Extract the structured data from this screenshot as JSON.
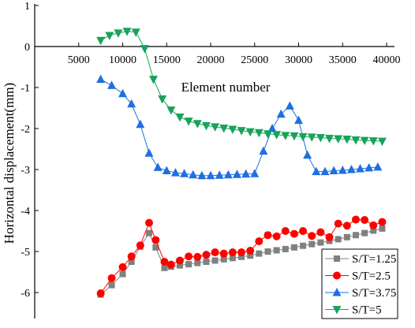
{
  "chart_data": {
    "type": "line",
    "title": "",
    "xlabel": "Element number",
    "ylabel": "Horizontal displacement(mm)",
    "xlim": [
      0,
      41000
    ],
    "ylim": [
      -6.5,
      1
    ],
    "xticks": [
      5000,
      10000,
      15000,
      20000,
      25000,
      30000,
      35000,
      40000
    ],
    "yticks": [
      1,
      0,
      -1,
      -2,
      -3,
      -4,
      -5,
      -6
    ],
    "grid": false,
    "legend_position": "bottom-right",
    "series": [
      {
        "name": "S/T=1.25",
        "color": "#808080",
        "marker": "square",
        "x": [
          7500,
          8750,
          10000,
          11000,
          12000,
          13000,
          13750,
          14750,
          15500,
          16500,
          17500,
          18500,
          19500,
          20500,
          21500,
          22500,
          23500,
          24500,
          25500,
          26500,
          27500,
          28500,
          29500,
          30500,
          31500,
          32500,
          33500,
          34500,
          35500,
          36500,
          37500,
          38500,
          39500
        ],
        "values": [
          -6.05,
          -5.82,
          -5.55,
          -5.25,
          -4.88,
          -4.55,
          -4.9,
          -5.4,
          -5.37,
          -5.34,
          -5.31,
          -5.28,
          -5.25,
          -5.22,
          -5.19,
          -5.16,
          -5.13,
          -5.1,
          -5.05,
          -5.0,
          -4.97,
          -4.94,
          -4.9,
          -4.86,
          -4.82,
          -4.78,
          -4.74,
          -4.7,
          -4.65,
          -4.6,
          -4.55,
          -4.49,
          -4.44
        ]
      },
      {
        "name": "S/T=2.5",
        "color": "#ff0000",
        "marker": "circle",
        "x": [
          7500,
          8750,
          10000,
          11000,
          12000,
          13000,
          13750,
          14750,
          15500,
          16500,
          17500,
          18500,
          19500,
          20500,
          21500,
          22500,
          23500,
          24500,
          25500,
          26500,
          27500,
          28500,
          29500,
          30500,
          31500,
          32500,
          33500,
          34500,
          35500,
          36500,
          37500,
          38500,
          39500
        ],
        "values": [
          -6.02,
          -5.65,
          -5.38,
          -5.12,
          -4.85,
          -4.3,
          -4.72,
          -5.25,
          -5.32,
          -5.22,
          -5.12,
          -5.13,
          -5.08,
          -5.02,
          -5.05,
          -5.02,
          -5.02,
          -4.98,
          -4.75,
          -4.6,
          -4.63,
          -4.5,
          -4.57,
          -4.5,
          -4.62,
          -4.53,
          -4.65,
          -4.32,
          -4.37,
          -4.22,
          -4.23,
          -4.36,
          -4.28
        ]
      },
      {
        "name": "S/T=3.75",
        "color": "#1f6fe0",
        "marker": "triangle-up",
        "x": [
          7500,
          8750,
          10000,
          11000,
          12000,
          13000,
          14000,
          15000,
          16000,
          17000,
          18000,
          19000,
          20000,
          21000,
          22000,
          23000,
          24000,
          25000,
          26000,
          27000,
          28000,
          29000,
          30000,
          31000,
          32000,
          33000,
          34000,
          35000,
          36000,
          37000,
          38000,
          39000
        ],
        "values": [
          -0.8,
          -0.95,
          -1.15,
          -1.4,
          -1.9,
          -2.6,
          -2.95,
          -3.03,
          -3.08,
          -3.1,
          -3.13,
          -3.15,
          -3.15,
          -3.14,
          -3.13,
          -3.12,
          -3.11,
          -3.1,
          -2.55,
          -2.0,
          -1.65,
          -1.45,
          -1.8,
          -2.65,
          -3.05,
          -3.05,
          -3.03,
          -3.02,
          -3.0,
          -2.98,
          -2.96,
          -2.94
        ]
      },
      {
        "name": "S/T=5",
        "color": "#17a35a",
        "marker": "triangle-down",
        "x": [
          7500,
          8500,
          9500,
          10500,
          11500,
          12500,
          13500,
          14500,
          15500,
          16500,
          17500,
          18500,
          19500,
          20500,
          21500,
          22500,
          23500,
          24500,
          25500,
          26500,
          27500,
          28500,
          29500,
          30500,
          31500,
          32500,
          33500,
          34500,
          35500,
          36500,
          37500,
          38500,
          39500
        ],
        "values": [
          0.15,
          0.27,
          0.33,
          0.37,
          0.35,
          -0.05,
          -0.8,
          -1.28,
          -1.55,
          -1.72,
          -1.82,
          -1.88,
          -1.93,
          -1.96,
          -1.99,
          -2.02,
          -2.05,
          -2.08,
          -2.1,
          -2.13,
          -2.15,
          -2.17,
          -2.18,
          -2.2,
          -2.21,
          -2.22,
          -2.24,
          -2.25,
          -2.26,
          -2.28,
          -2.29,
          -2.3,
          -2.31
        ]
      }
    ]
  }
}
